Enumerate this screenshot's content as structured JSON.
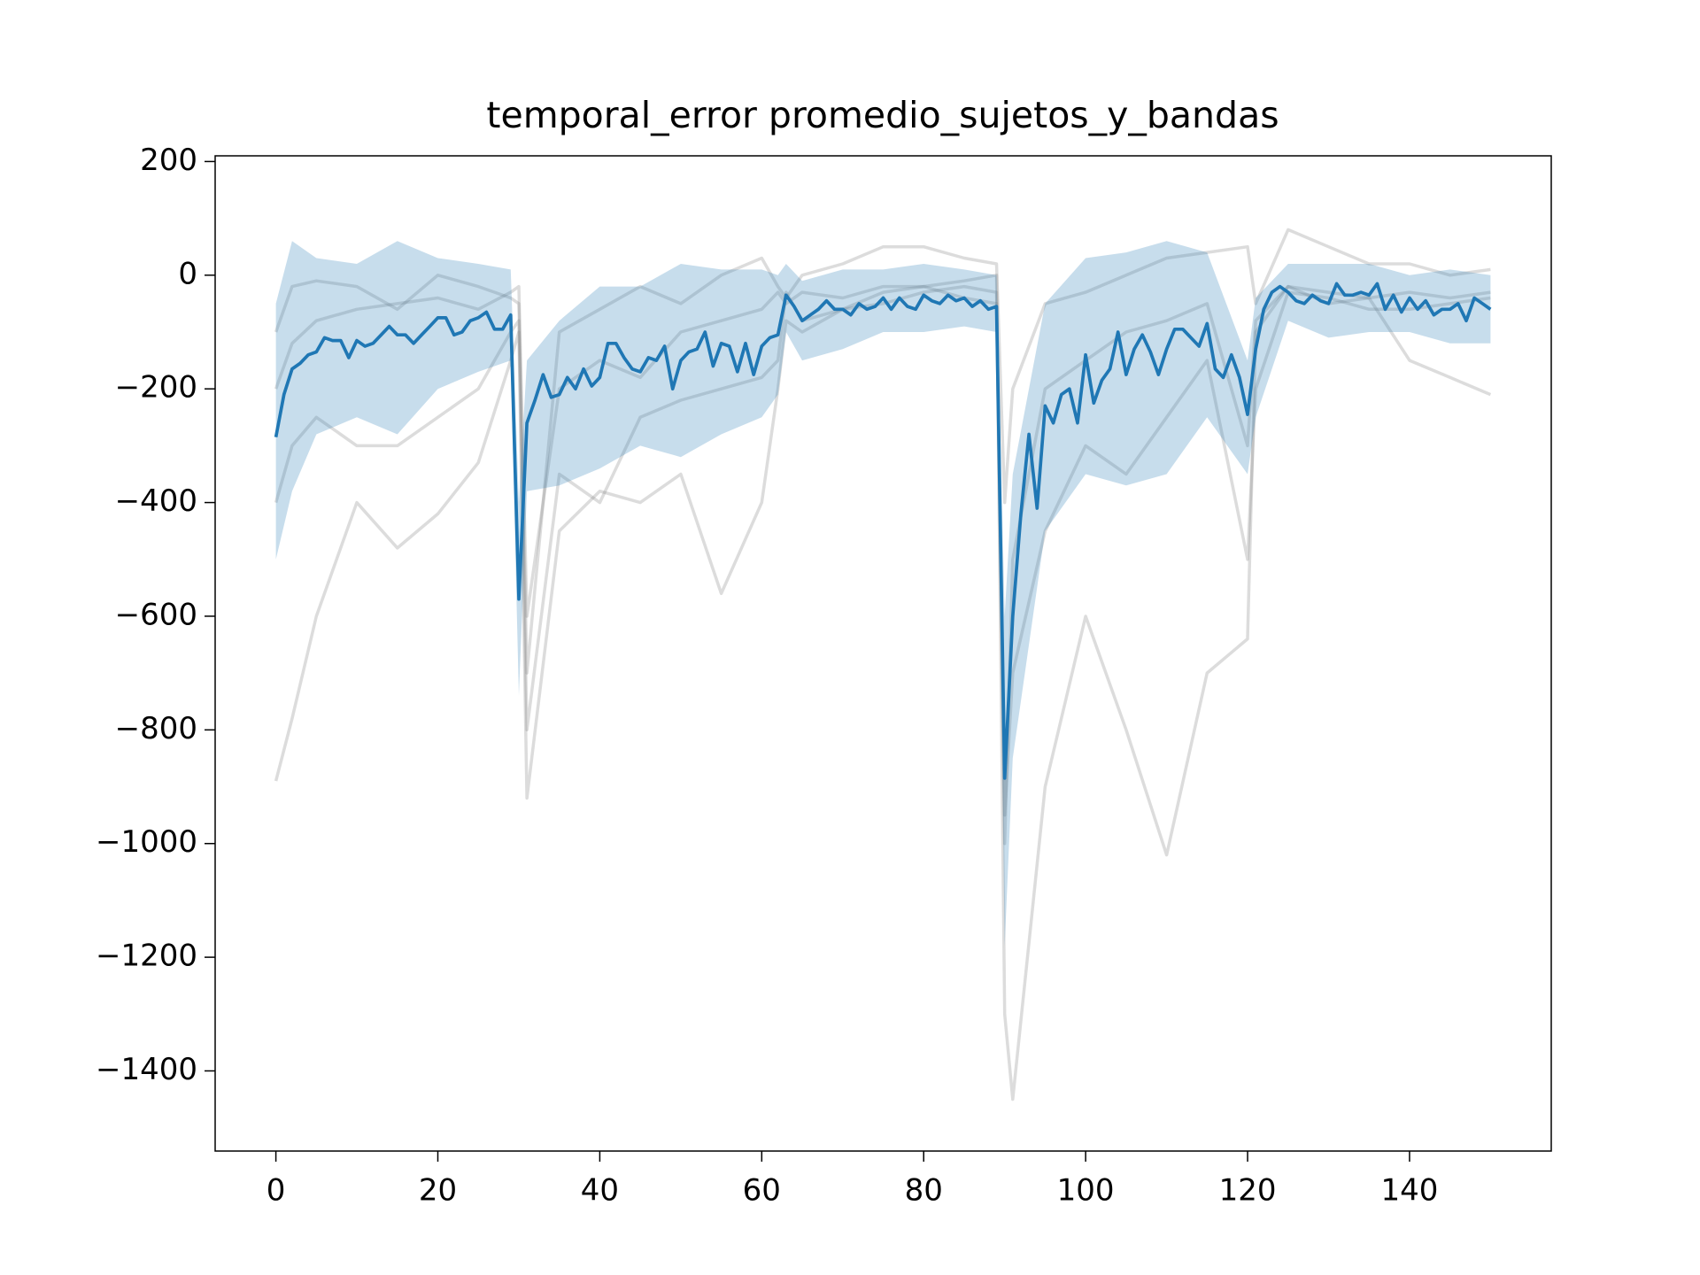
{
  "chart_data": {
    "type": "line",
    "title": "temporal_error promedio_sujetos_y_bandas",
    "x": [
      0,
      1,
      2,
      3,
      4,
      5,
      6,
      7,
      8,
      9,
      10,
      11,
      12,
      13,
      14,
      15,
      16,
      17,
      18,
      19,
      20,
      21,
      22,
      23,
      24,
      25,
      26,
      27,
      28,
      29,
      30,
      31,
      32,
      33,
      34,
      35,
      36,
      37,
      38,
      39,
      40,
      41,
      42,
      43,
      44,
      45,
      46,
      47,
      48,
      49,
      50,
      51,
      52,
      53,
      54,
      55,
      56,
      57,
      58,
      59,
      60,
      61,
      62,
      63,
      64,
      65,
      66,
      67,
      68,
      69,
      70,
      71,
      72,
      73,
      74,
      75,
      76,
      77,
      78,
      79,
      80,
      81,
      82,
      83,
      84,
      85,
      86,
      87,
      88,
      89,
      90,
      91,
      92,
      93,
      94,
      95,
      96,
      97,
      98,
      99,
      100,
      101,
      102,
      103,
      104,
      105,
      106,
      107,
      108,
      109,
      110,
      111,
      112,
      113,
      114,
      115,
      116,
      117,
      118,
      119,
      120,
      121,
      122,
      123,
      124,
      125,
      126,
      127,
      128,
      129,
      130,
      131,
      132,
      133,
      134,
      135,
      136,
      137,
      138,
      139,
      140,
      141,
      142,
      143,
      144,
      145,
      146,
      147,
      148,
      149,
      150
    ],
    "series": [
      {
        "color": "#1f77b4",
        "values": [
          -285,
          -210,
          -165,
          -155,
          -140,
          -135,
          -110,
          -115,
          -115,
          -145,
          -115,
          -125,
          -120,
          -105,
          -90,
          -105,
          -105,
          -120,
          -105,
          -90,
          -75,
          -75,
          -105,
          -100,
          -80,
          -75,
          -65,
          -95,
          -95,
          -70,
          -570,
          -260,
          -220,
          -175,
          -215,
          -210,
          -180,
          -200,
          -165,
          -195,
          -180,
          -120,
          -120,
          -145,
          -165,
          -170,
          -145,
          -150,
          -125,
          -200,
          -150,
          -135,
          -130,
          -100,
          -160,
          -120,
          -125,
          -170,
          -120,
          -175,
          -125,
          -110,
          -105,
          -35,
          -55,
          -80,
          -70,
          -60,
          -45,
          -60,
          -60,
          -70,
          -50,
          -60,
          -55,
          -40,
          -60,
          -40,
          -55,
          -60,
          -35,
          -45,
          -50,
          -35,
          -45,
          -40,
          -55,
          -45,
          -60,
          -55,
          -885,
          -600,
          -420,
          -280,
          -410,
          -230,
          -260,
          -210,
          -200,
          -260,
          -140,
          -225,
          -185,
          -165,
          -100,
          -175,
          -130,
          -105,
          -135,
          -175,
          -130,
          -95,
          -95,
          -110,
          -125,
          -85,
          -165,
          -180,
          -140,
          -180,
          -245,
          -130,
          -60,
          -30,
          -20,
          -30,
          -45,
          -50,
          -35,
          -45,
          -50,
          -15,
          -35,
          -35,
          -30,
          -35,
          -15,
          -60,
          -35,
          -65,
          -40,
          -60,
          -45,
          -70,
          -60,
          -60,
          -50,
          -80,
          -40,
          -50,
          -60
        ]
      }
    ],
    "band": {
      "color": "#1f77b4",
      "x": [
        0,
        2,
        5,
        10,
        15,
        20,
        25,
        29,
        30,
        31,
        35,
        40,
        45,
        50,
        55,
        60,
        62,
        63,
        65,
        70,
        75,
        80,
        85,
        89,
        90,
        91,
        95,
        100,
        105,
        110,
        115,
        120,
        121,
        125,
        130,
        135,
        140,
        145,
        150
      ],
      "upper": [
        -50,
        60,
        30,
        20,
        60,
        30,
        20,
        10,
        -400,
        -150,
        -80,
        -20,
        -20,
        20,
        10,
        10,
        0,
        20,
        -10,
        10,
        10,
        20,
        10,
        0,
        -600,
        -350,
        -50,
        30,
        40,
        60,
        40,
        -150,
        -40,
        20,
        20,
        20,
        0,
        10,
        0
      ],
      "lower": [
        -500,
        -380,
        -280,
        -250,
        -280,
        -200,
        -170,
        -150,
        -740,
        -380,
        -370,
        -340,
        -300,
        -320,
        -280,
        -250,
        -210,
        -100,
        -150,
        -130,
        -100,
        -100,
        -90,
        -100,
        -1180,
        -850,
        -450,
        -350,
        -370,
        -350,
        -250,
        -350,
        -250,
        -80,
        -110,
        -100,
        -100,
        -120,
        -120
      ]
    },
    "subjects": {
      "color": "#808080",
      "x": [
        0,
        2,
        5,
        10,
        15,
        20,
        25,
        29,
        30,
        31,
        35,
        40,
        45,
        50,
        55,
        60,
        62,
        63,
        65,
        70,
        75,
        80,
        85,
        89,
        90,
        91,
        95,
        100,
        105,
        110,
        115,
        120,
        121,
        125,
        130,
        135,
        140,
        145,
        150
      ],
      "series": [
        {
          "values": [
            -890,
            -780,
            -600,
            -400,
            -480,
            -420,
            -330,
            -150,
            -100,
            -920,
            -450,
            -380,
            -400,
            -350,
            -560,
            -400,
            -200,
            -80,
            -100,
            -60,
            -30,
            -20,
            -10,
            0,
            -1300,
            -1450,
            -900,
            -600,
            -800,
            -1020,
            -700,
            -640,
            -100,
            -20,
            -50,
            -40,
            -150,
            -180,
            -210
          ]
        },
        {
          "values": [
            -400,
            -300,
            -250,
            -300,
            -300,
            -250,
            -200,
            -100,
            -80,
            -800,
            -350,
            -400,
            -250,
            -220,
            -200,
            -180,
            -150,
            -30,
            -80,
            -60,
            -50,
            -30,
            -20,
            -30,
            -950,
            -700,
            -450,
            -300,
            -350,
            -250,
            -150,
            -500,
            -200,
            -30,
            -40,
            -60,
            -60,
            -50,
            -40
          ]
        },
        {
          "values": [
            -100,
            -20,
            -10,
            -20,
            -60,
            0,
            -20,
            -40,
            -50,
            -700,
            -100,
            -60,
            -20,
            -50,
            0,
            30,
            -20,
            -40,
            0,
            20,
            50,
            50,
            30,
            20,
            -400,
            -200,
            -50,
            -30,
            0,
            30,
            40,
            50,
            -50,
            80,
            50,
            20,
            20,
            0,
            10
          ]
        },
        {
          "values": [
            -200,
            -120,
            -80,
            -60,
            -50,
            -40,
            -60,
            -30,
            -20,
            -600,
            -200,
            -150,
            -180,
            -100,
            -80,
            -60,
            -30,
            -50,
            -30,
            -40,
            -20,
            -20,
            -40,
            -50,
            -1000,
            -500,
            -200,
            -150,
            -100,
            -80,
            -50,
            -300,
            -80,
            -20,
            -30,
            -40,
            -30,
            -40,
            -30
          ]
        }
      ]
    },
    "xlim": [
      -7.5,
      157.5
    ],
    "ylim": [
      -1541,
      210
    ],
    "xticks": [
      0,
      20,
      40,
      60,
      80,
      100,
      120,
      140
    ],
    "yticks": [
      {
        "value": -1400,
        "label": "−1400"
      },
      {
        "value": -1200,
        "label": "−1200"
      },
      {
        "value": -1000,
        "label": "−1000"
      },
      {
        "value": -800,
        "label": "−800"
      },
      {
        "value": -600,
        "label": "−600"
      },
      {
        "value": -400,
        "label": "−400"
      },
      {
        "value": -200,
        "label": "−200"
      },
      0,
      200
    ]
  }
}
